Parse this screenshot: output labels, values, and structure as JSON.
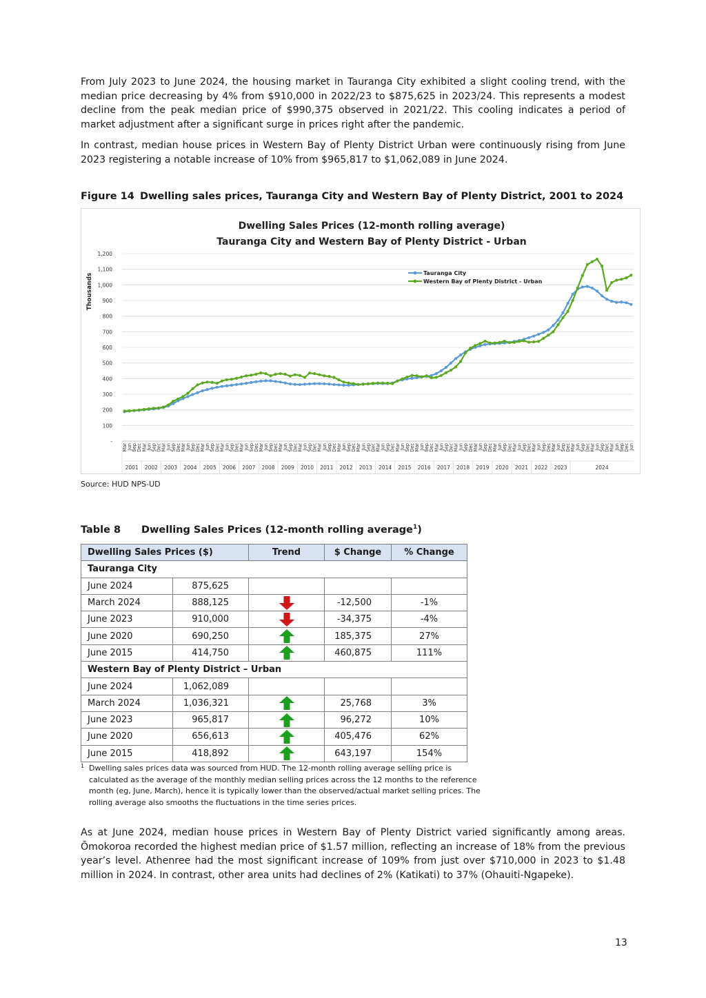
{
  "paragraphs": {
    "p1": "From July 2023 to June 2024, the housing market in Tauranga City exhibited a slight cooling trend, with the median price decreasing by 4% from $910,000 in 2022/23 to $875,625 in 2023/24. This represents a modest decline from the peak median price of $990,375 observed in 2021/22. This cooling indicates a period of market adjustment after a significant surge in prices right after the pandemic.",
    "p2": "In contrast, median house prices in Western Bay of Plenty District Urban were continuously rising from June 2023 registering a notable increase of 10% from $965,817 to $1,062,089 in June 2024.",
    "p3": "As at June 2024, median house prices in Western Bay of Plenty District varied significantly among areas. Ōmokoroa recorded the highest median price of $1.57 million, reflecting an increase of 18% from the previous year’s level. Athenree had the most significant increase of 109% from just over $710,000 in 2023 to $1.48 million in 2024. In contrast, other area units had declines of 2% (Katikati) to 37% (Ohauiti-Ngapeke)."
  },
  "figure": {
    "number": "Figure 14",
    "caption": "Dwelling sales prices, Tauranga City and Western Bay of Plenty District, 2001 to 2024",
    "source": "Source:  HUD NPS-UD"
  },
  "chart_data": {
    "type": "line",
    "title": "Dwelling Sales Prices (12-month rolling average)",
    "subtitle": "Tauranga City and Western Bay of Plenty District - Urban",
    "ylabel": "Thousands",
    "ylim": [
      0,
      1200
    ],
    "yticks": [
      "-",
      "100",
      "200",
      "300",
      "400",
      "500",
      "600",
      "700",
      "800",
      "900",
      "1,000",
      "1,100",
      "1,200"
    ],
    "grid": true,
    "legend_position": "top-right",
    "quarter_labels": [
      "Mar",
      "Jun",
      "Sep",
      "Dec"
    ],
    "first_label": "Mar",
    "last_label": "Jun",
    "years": [
      "2001",
      "2002",
      "2003",
      "2004",
      "2005",
      "2006",
      "2007",
      "2008",
      "2009",
      "2010",
      "2011",
      "2012",
      "2013",
      "2014",
      "2015",
      "2016",
      "2017",
      "2018",
      "2019",
      "2020",
      "2021",
      "2022",
      "2023",
      "2024"
    ],
    "series": [
      {
        "name": "Tauranga City",
        "color": "#5b9bd5",
        "values": [
          188,
          192,
          195,
          197,
          200,
          203,
          206,
          210,
          215,
          225,
          240,
          258,
          272,
          285,
          298,
          310,
          322,
          330,
          338,
          345,
          350,
          354,
          358,
          362,
          366,
          370,
          375,
          380,
          384,
          386,
          386,
          382,
          378,
          372,
          366,
          363,
          362,
          364,
          366,
          368,
          368,
          367,
          365,
          362,
          360,
          358,
          358,
          360,
          362,
          365,
          367,
          368,
          369,
          368,
          368,
          372,
          385,
          392,
          398,
          402,
          406,
          410,
          414,
          420,
          432,
          450,
          472,
          500,
          528,
          552,
          572,
          588,
          600,
          610,
          618,
          622,
          624,
          625,
          628,
          632,
          638,
          644,
          652,
          662,
          672,
          684,
          696,
          712,
          740,
          775,
          822,
          882,
          940,
          972,
          986,
          990,
          980,
          960,
          930,
          908,
          895,
          888,
          890,
          886,
          875
        ]
      },
      {
        "name": "Western Bay of Plenty District - Urban",
        "color": "#5ca821",
        "values": [
          192,
          194,
          196,
          199,
          203,
          207,
          210,
          212,
          218,
          232,
          255,
          270,
          285,
          306,
          335,
          360,
          372,
          378,
          376,
          370,
          385,
          393,
          396,
          402,
          410,
          418,
          422,
          428,
          437,
          432,
          418,
          428,
          432,
          428,
          416,
          425,
          420,
          408,
          436,
          432,
          425,
          418,
          414,
          408,
          392,
          378,
          372,
          368,
          362,
          364,
          366,
          370,
          372,
          372,
          370,
          368,
          385,
          398,
          410,
          420,
          418,
          412,
          418,
          405,
          408,
          420,
          438,
          454,
          475,
          510,
          565,
          595,
          612,
          625,
          640,
          628,
          628,
          632,
          640,
          630,
          632,
          638,
          642,
          633,
          635,
          638,
          658,
          678,
          700,
          745,
          790,
          830,
          900,
          980,
          1060,
          1130,
          1148,
          1165,
          1120,
          965,
          1015,
          1030,
          1036,
          1045,
          1062
        ]
      }
    ]
  },
  "table": {
    "number": "Table 8",
    "caption": "Dwelling Sales Prices (12-month rolling average",
    "footnote_ref": "1",
    "caption_close": ")",
    "headers": [
      "Dwelling Sales Prices ($)",
      "Trend",
      "$ Change",
      "% Change"
    ],
    "groups": [
      {
        "name": "Tauranga City",
        "rows": [
          {
            "period": "June 2024",
            "value": "875,625",
            "trend": "",
            "change": "",
            "pct": ""
          },
          {
            "period": "March 2024",
            "value": "888,125",
            "trend": "down",
            "change": "-12,500",
            "pct": "-1%"
          },
          {
            "period": "June 2023",
            "value": "910,000",
            "trend": "down",
            "change": "-34,375",
            "pct": "-4%"
          },
          {
            "period": "June 2020",
            "value": "690,250",
            "trend": "up",
            "change": "185,375",
            "pct": "27%"
          },
          {
            "period": "June 2015",
            "value": "414,750",
            "trend": "up",
            "change": "460,875",
            "pct": "111%"
          }
        ]
      },
      {
        "name": "Western Bay of Plenty District – Urban",
        "rows": [
          {
            "period": "June 2024",
            "value": "1,062,089",
            "trend": "",
            "change": "",
            "pct": ""
          },
          {
            "period": "March 2024",
            "value": "1,036,321",
            "trend": "up",
            "change": "25,768",
            "pct": "3%"
          },
          {
            "period": "June 2023",
            "value": "965,817",
            "trend": "up",
            "change": "96,272",
            "pct": "10%"
          },
          {
            "period": "June 2020",
            "value": "656,613",
            "trend": "up",
            "change": "405,476",
            "pct": "62%"
          },
          {
            "period": "June 2015",
            "value": "418,892",
            "trend": "up",
            "change": "643,197",
            "pct": "154%"
          }
        ]
      }
    ],
    "trend_colors": {
      "up": "#1e9e1e",
      "down": "#d0181b"
    }
  },
  "footnote": {
    "mark": "1",
    "text": "Dwelling sales prices data was sourced from HUD. The 12-month rolling average selling price is calculated as the average of the monthly median selling prices across the 12 months to the reference month (eg, June, March), hence it is typically lower than the observed/actual market selling prices. The rolling average also smooths the fluctuations in the time series prices."
  },
  "page_number": "13"
}
